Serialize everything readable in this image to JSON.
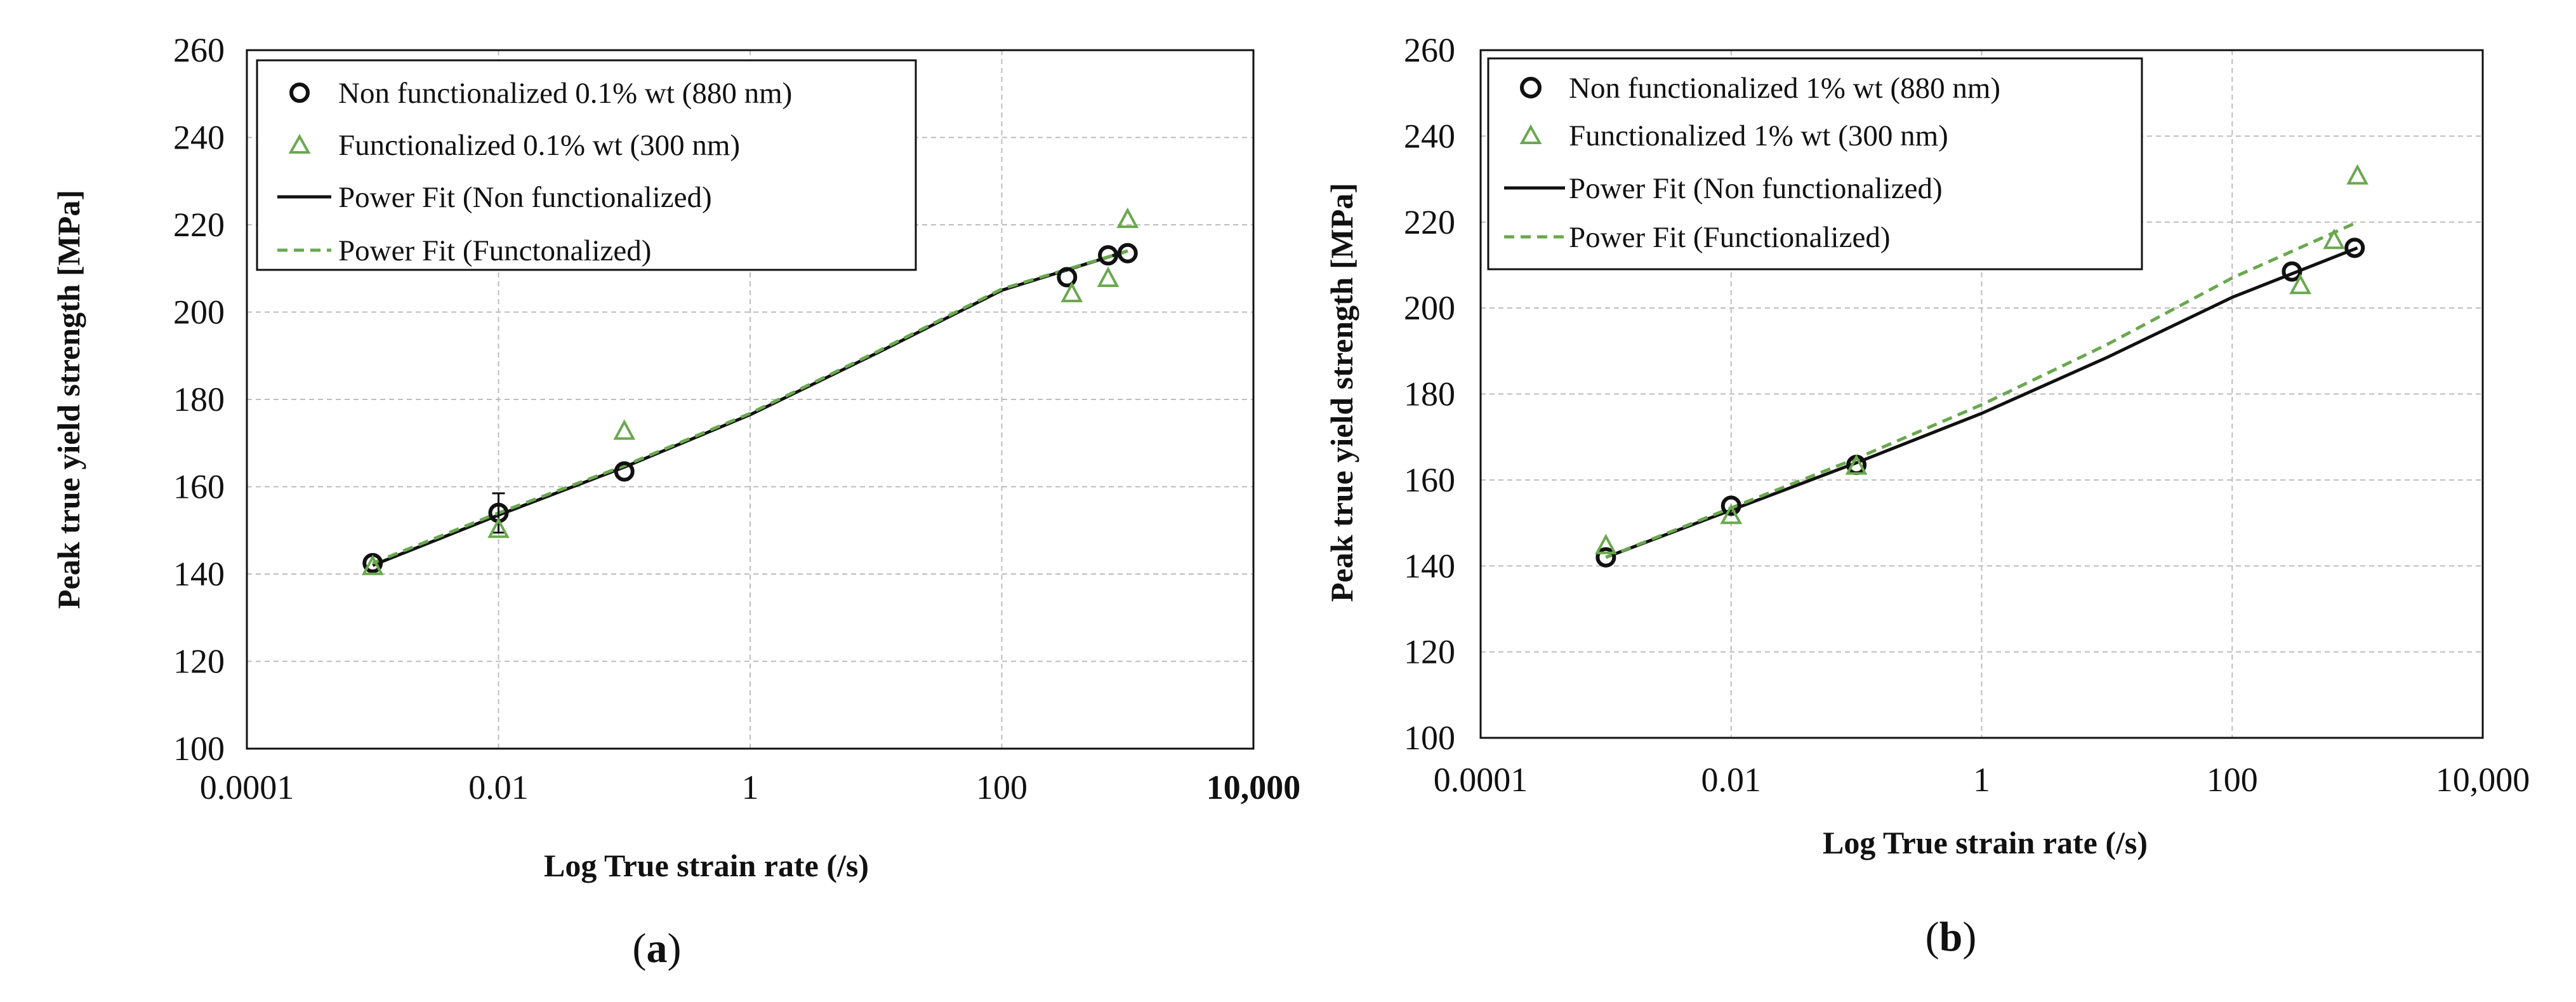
{
  "chart_data": [
    {
      "panel": "a",
      "type": "scatter",
      "x_scale": "log",
      "xlabel": "Log True strain rate (/s)",
      "ylabel": "Peak true yield strength [MPa]",
      "xlim": [
        0.0001,
        10000
      ],
      "ylim": [
        100,
        260
      ],
      "x_ticks": [
        0.0001,
        0.01,
        1,
        100,
        10000
      ],
      "x_tick_labels": [
        "0.0001",
        "0.01",
        "1",
        "100",
        "10,000"
      ],
      "y_ticks": [
        100,
        120,
        140,
        160,
        180,
        200,
        220,
        240,
        260
      ],
      "y_tick_labels": [
        "100",
        "120",
        "140",
        "160",
        "180",
        "200",
        "220",
        "240",
        "260"
      ],
      "grid": true,
      "legend": "top-left",
      "series": [
        {
          "name": "Non functionalized 0.1% wt (880 nm)",
          "kind": "points",
          "marker": "circle",
          "color": "#111111",
          "x": [
            0.001,
            0.01,
            0.1,
            330,
            700,
            1000
          ],
          "y": [
            142.5,
            154,
            163.5,
            208,
            213,
            213.5
          ],
          "err": [
            0,
            4.5,
            0,
            0,
            0,
            0
          ]
        },
        {
          "name": "Functionalized 0.1% wt (300 nm)",
          "kind": "points",
          "marker": "triangle",
          "color": "#6aa84f",
          "x": [
            0.001,
            0.01,
            0.1,
            360,
            700,
            1000
          ],
          "y": [
            141.5,
            150,
            172.5,
            204,
            207.5,
            221
          ],
          "err": [
            0,
            0,
            0,
            0,
            0,
            0
          ]
        },
        {
          "name": "Power Fit (Non functionalized)",
          "kind": "line",
          "style": "solid",
          "color": "#111111",
          "x": [
            0.001,
            0.01,
            0.1,
            1,
            10,
            100,
            1000
          ],
          "y": [
            142,
            153.5,
            164.5,
            176.5,
            190.5,
            205,
            214
          ]
        },
        {
          "name": "Power Fit (Functonalized)",
          "kind": "line",
          "style": "dashed",
          "color": "#6aa84f",
          "x": [
            0.001,
            0.01,
            0.1,
            1,
            10,
            100,
            1000
          ],
          "y": [
            142.5,
            154,
            164.8,
            176.8,
            190.8,
            205.3,
            214
          ]
        }
      ],
      "panel_label": "a"
    },
    {
      "panel": "b",
      "type": "scatter",
      "x_scale": "log",
      "xlabel": "Log True strain rate (/s)",
      "ylabel": "Peak true yield strength [MPa]",
      "xlim": [
        0.0001,
        10000
      ],
      "ylim": [
        100,
        260
      ],
      "x_ticks": [
        0.0001,
        0.01,
        1,
        100,
        10000
      ],
      "x_tick_labels": [
        "0.0001",
        "0.01",
        "1",
        "100",
        "10,000"
      ],
      "y_ticks": [
        100,
        120,
        140,
        160,
        180,
        200,
        220,
        240,
        260
      ],
      "y_tick_labels": [
        "100",
        "120",
        "140",
        "160",
        "180",
        "200",
        "220",
        "240",
        "260"
      ],
      "grid": true,
      "legend": "top-left",
      "series": [
        {
          "name": "Non functionalized 1% wt (880 nm)",
          "kind": "points",
          "marker": "circle",
          "color": "#111111",
          "x": [
            0.001,
            0.01,
            0.1,
            300,
            950
          ],
          "y": [
            142,
            154,
            163.5,
            208.5,
            214
          ],
          "err": [
            0,
            0,
            0,
            0,
            0
          ]
        },
        {
          "name": "Functionalized 1% wt (300 nm)",
          "kind": "points",
          "marker": "triangle",
          "color": "#6aa84f",
          "x": [
            0.001,
            0.01,
            0.1,
            350,
            650,
            1000
          ],
          "y": [
            144.5,
            151.5,
            163,
            205,
            215.5,
            230.5
          ],
          "err": [
            0,
            0,
            0,
            0,
            0,
            0
          ]
        },
        {
          "name": "Power Fit (Non functionalized)",
          "kind": "line",
          "style": "solid",
          "color": "#111111",
          "x": [
            0.001,
            0.01,
            0.1,
            1,
            10,
            100,
            1000
          ],
          "y": [
            142,
            153,
            164,
            175.5,
            188.5,
            202.5,
            214
          ]
        },
        {
          "name": "Power Fit (Functionalized)",
          "kind": "line",
          "style": "dashed",
          "color": "#6aa84f",
          "x": [
            0.001,
            0.01,
            0.1,
            1,
            10,
            100,
            1000
          ],
          "y": [
            142,
            153.5,
            165,
            177.5,
            191.5,
            207,
            220
          ]
        }
      ],
      "panel_label": "b"
    }
  ]
}
